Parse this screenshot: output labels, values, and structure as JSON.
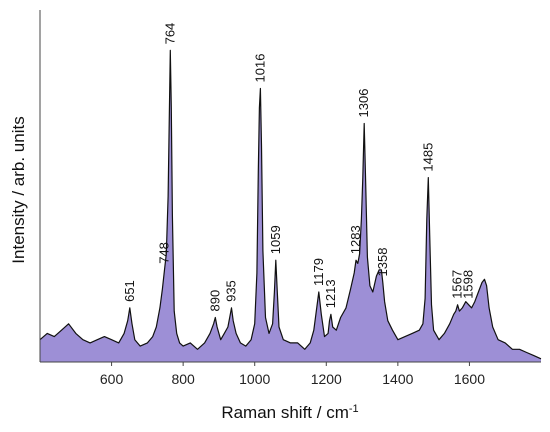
{
  "chart_data": {
    "type": "area",
    "xlabel": "Raman shift / cm",
    "xlabel_superscript": "-1",
    "ylabel": "Intensity / arb. units",
    "xlim": [
      400,
      1800
    ],
    "ylim": [
      0,
      100
    ],
    "x_ticks": [
      "600",
      "800",
      "1000",
      "1200",
      "1400",
      "1600"
    ],
    "y_ticks_shown": false,
    "fill_color": "#9d8fd6",
    "line_color": "#111111",
    "series": [
      {
        "x": [
          400,
          420,
          440,
          460,
          480,
          500,
          520,
          540,
          560,
          580,
          600,
          620,
          635,
          645,
          651,
          657,
          665,
          680,
          700,
          715,
          725,
          735,
          742,
          748,
          753,
          758,
          761,
          764,
          767,
          770,
          775,
          782,
          790,
          800,
          820,
          840,
          860,
          875,
          885,
          890,
          895,
          905,
          915,
          925,
          930,
          935,
          940,
          948,
          960,
          975,
          990,
          1000,
          1006,
          1010,
          1013,
          1016,
          1019,
          1023,
          1030,
          1040,
          1050,
          1055,
          1059,
          1063,
          1068,
          1080,
          1100,
          1120,
          1140,
          1155,
          1165,
          1172,
          1179,
          1186,
          1195,
          1205,
          1209,
          1213,
          1218,
          1228,
          1240,
          1255,
          1268,
          1278,
          1283,
          1288,
          1293,
          1298,
          1302,
          1306,
          1310,
          1315,
          1322,
          1330,
          1340,
          1348,
          1354,
          1358,
          1363,
          1372,
          1385,
          1400,
          1420,
          1440,
          1460,
          1470,
          1476,
          1481,
          1485,
          1489,
          1494,
          1500,
          1515,
          1530,
          1545,
          1556,
          1562,
          1567,
          1572,
          1580,
          1590,
          1598,
          1606,
          1615,
          1625,
          1635,
          1642,
          1648,
          1655,
          1665,
          1680,
          1700,
          1720,
          1740,
          1760,
          1780,
          1800
        ],
        "values": [
          7,
          9,
          8,
          10,
          12,
          9,
          7,
          6,
          7,
          8,
          7,
          6,
          9,
          13,
          17,
          12,
          7,
          5,
          6,
          8,
          11,
          17,
          23,
          29,
          34,
          52,
          75,
          98,
          80,
          46,
          16,
          9,
          6,
          5,
          6,
          4,
          6,
          9,
          12,
          14,
          11,
          7,
          9,
          11,
          14,
          17,
          13,
          9,
          6,
          5,
          7,
          12,
          28,
          60,
          80,
          86,
          68,
          35,
          14,
          9,
          12,
          22,
          32,
          22,
          11,
          7,
          6,
          6,
          4,
          6,
          10,
          16,
          22,
          15,
          8,
          9,
          13,
          15,
          11,
          10,
          14,
          17,
          23,
          28,
          32,
          31,
          34,
          45,
          58,
          75,
          56,
          33,
          24,
          22,
          27,
          29,
          29,
          25,
          19,
          13,
          10,
          7,
          8,
          9,
          10,
          12,
          20,
          45,
          58,
          40,
          18,
          10,
          7,
          9,
          12,
          15,
          16,
          18,
          16,
          17,
          19,
          18,
          17,
          19,
          22,
          25,
          26,
          24,
          17,
          11,
          7,
          6,
          4,
          4,
          3,
          2,
          1
        ]
      }
    ],
    "annotations": [
      {
        "x": 651,
        "text": "651"
      },
      {
        "x": 748,
        "text": "748"
      },
      {
        "x": 764,
        "text": "764"
      },
      {
        "x": 890,
        "text": "890"
      },
      {
        "x": 935,
        "text": "935"
      },
      {
        "x": 1016,
        "text": "1016"
      },
      {
        "x": 1059,
        "text": "1059"
      },
      {
        "x": 1179,
        "text": "1179"
      },
      {
        "x": 1213,
        "text": "1213"
      },
      {
        "x": 1283,
        "text": "1283"
      },
      {
        "x": 1306,
        "text": "1306"
      },
      {
        "x": 1358,
        "text": "1358"
      },
      {
        "x": 1485,
        "text": "1485"
      },
      {
        "x": 1567,
        "text": "1567"
      },
      {
        "x": 1598,
        "text": "1598"
      }
    ]
  }
}
